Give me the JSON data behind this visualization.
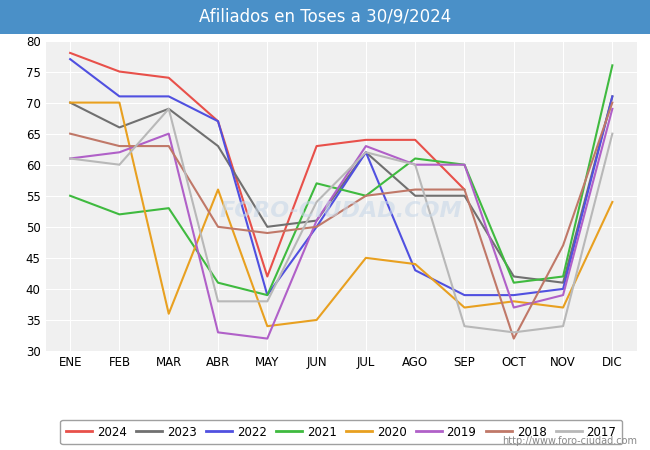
{
  "title": "Afiliados en Toses a 30/9/2024",
  "title_bg": "#4a90c8",
  "title_color": "white",
  "ylim": [
    30,
    80
  ],
  "yticks": [
    30,
    35,
    40,
    45,
    50,
    55,
    60,
    65,
    70,
    75,
    80
  ],
  "months": [
    "ENE",
    "FEB",
    "MAR",
    "ABR",
    "MAY",
    "JUN",
    "JUL",
    "AGO",
    "SEP",
    "OCT",
    "NOV",
    "DIC"
  ],
  "watermark": "FORO-CIUDAD.COM",
  "url": "http://www.foro-ciudad.com",
  "series": {
    "2024": {
      "color": "#e8504a",
      "data": [
        78,
        75,
        74,
        67,
        42,
        63,
        64,
        64,
        56,
        null,
        null,
        null
      ]
    },
    "2023": {
      "color": "#707070",
      "data": [
        70,
        66,
        69,
        63,
        50,
        51,
        62,
        55,
        55,
        42,
        41,
        71
      ]
    },
    "2022": {
      "color": "#5050e0",
      "data": [
        77,
        71,
        71,
        67,
        39,
        50,
        62,
        43,
        39,
        39,
        40,
        71
      ]
    },
    "2021": {
      "color": "#3fba3f",
      "data": [
        55,
        52,
        53,
        41,
        39,
        57,
        55,
        61,
        60,
        41,
        42,
        76
      ]
    },
    "2020": {
      "color": "#e8a020",
      "data": [
        70,
        70,
        36,
        56,
        34,
        35,
        45,
        44,
        37,
        38,
        37,
        54
      ]
    },
    "2019": {
      "color": "#b060c8",
      "data": [
        61,
        62,
        65,
        33,
        32,
        51,
        63,
        60,
        60,
        37,
        39,
        69
      ]
    },
    "2018": {
      "color": "#c07868",
      "data": [
        65,
        63,
        63,
        50,
        49,
        50,
        55,
        56,
        56,
        32,
        47,
        70
      ]
    },
    "2017": {
      "color": "#b8b8b8",
      "data": [
        61,
        60,
        69,
        38,
        38,
        54,
        62,
        60,
        34,
        33,
        34,
        65
      ]
    }
  },
  "legend_order": [
    "2024",
    "2023",
    "2022",
    "2021",
    "2020",
    "2019",
    "2018",
    "2017"
  ],
  "background_color": "#ffffff",
  "plot_bg": "#f0f0f0",
  "grid_color": "#ffffff"
}
